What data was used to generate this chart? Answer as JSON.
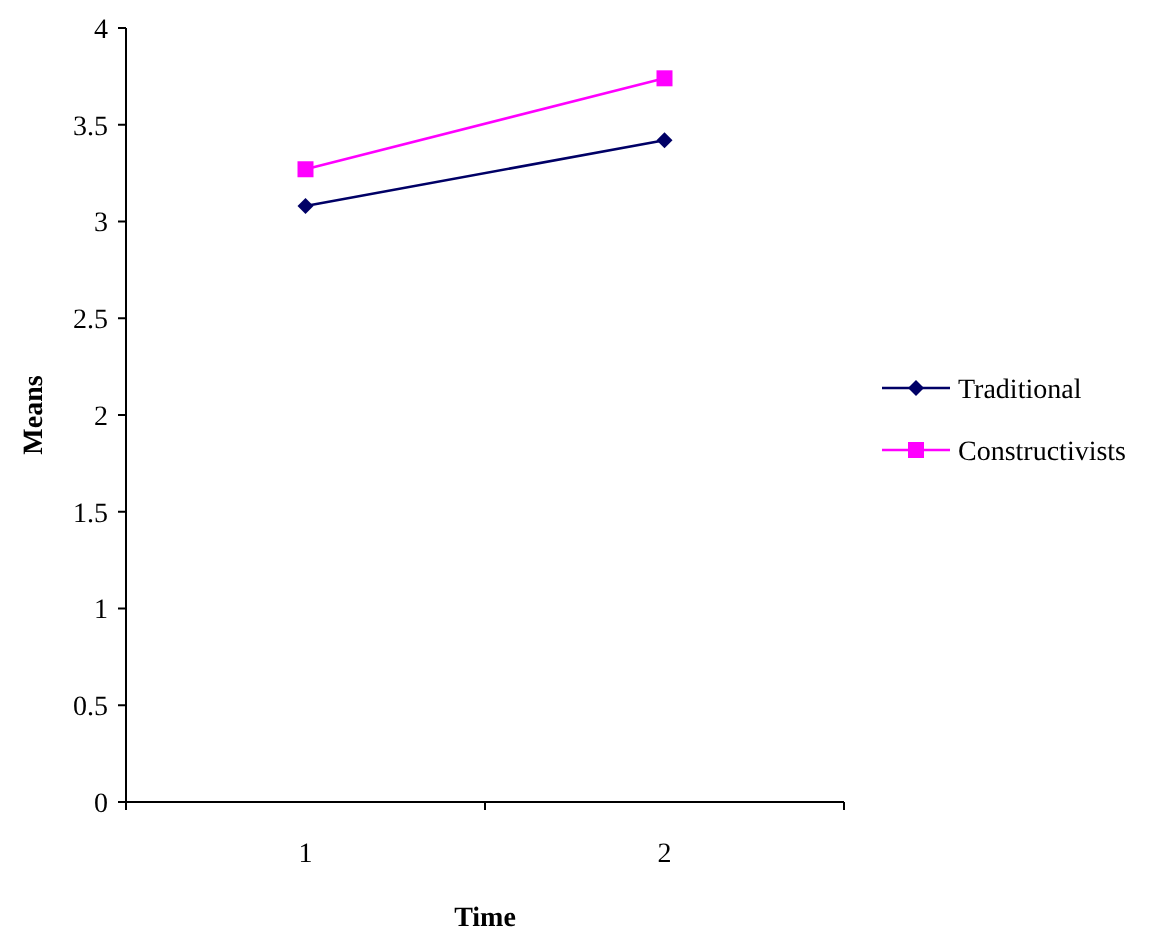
{
  "chart_data": {
    "type": "line",
    "xlabel": "Time",
    "ylabel": "Means",
    "categories": [
      "1",
      "2"
    ],
    "series": [
      {
        "name": "Traditional",
        "color": "#000066",
        "marker": "diamond",
        "values": [
          3.08,
          3.42
        ]
      },
      {
        "name": "Constructivists",
        "color": "#ff00ff",
        "marker": "square",
        "values": [
          3.27,
          3.74
        ]
      }
    ],
    "ylim": [
      0,
      4
    ],
    "yticks": [
      0,
      0.5,
      1,
      1.5,
      2,
      2.5,
      3,
      3.5,
      4
    ],
    "grid": false,
    "legend": "right",
    "line_style": "solid"
  }
}
